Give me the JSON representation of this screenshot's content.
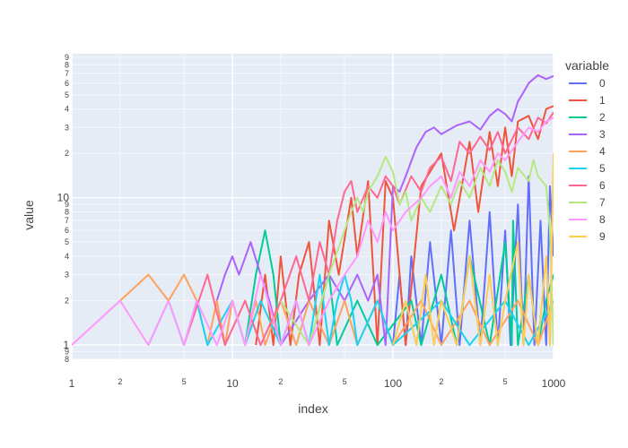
{
  "chart_data": {
    "type": "line",
    "xlabel": "index",
    "ylabel": "value",
    "x_scale": "log",
    "y_scale": "log",
    "xlim": [
      1,
      1000
    ],
    "ylim": [
      0.8,
      95
    ],
    "grid": true,
    "legend": {
      "title": "variable",
      "placement": "right"
    },
    "x_major_ticks": [
      {
        "v": 1,
        "label": "1"
      },
      {
        "v": 10,
        "label": "10"
      },
      {
        "v": 100,
        "label": "100"
      },
      {
        "v": 1000,
        "label": "1000"
      }
    ],
    "x_minor_ticks": [
      {
        "v": 2,
        "label": "2"
      },
      {
        "v": 5,
        "label": "5"
      },
      {
        "v": 20,
        "label": "2"
      },
      {
        "v": 50,
        "label": "5"
      },
      {
        "v": 200,
        "label": "2"
      },
      {
        "v": 500,
        "label": "5"
      }
    ],
    "y_major_ticks": [
      {
        "v": 1,
        "label": "1"
      },
      {
        "v": 10,
        "label": "10"
      }
    ],
    "y_minor_ticks": [
      {
        "v": 0.8,
        "label": "8"
      },
      {
        "v": 0.9,
        "label": "9"
      },
      {
        "v": 2,
        "label": "2"
      },
      {
        "v": 3,
        "label": "3"
      },
      {
        "v": 4,
        "label": "4"
      },
      {
        "v": 5,
        "label": "5"
      },
      {
        "v": 6,
        "label": "6"
      },
      {
        "v": 7,
        "label": "7"
      },
      {
        "v": 8,
        "label": "8"
      },
      {
        "v": 9,
        "label": "9"
      },
      {
        "v": 20,
        "label": "2"
      },
      {
        "v": 30,
        "label": "3"
      },
      {
        "v": 40,
        "label": "4"
      },
      {
        "v": 50,
        "label": "5"
      },
      {
        "v": 60,
        "label": "6"
      },
      {
        "v": 70,
        "label": "7"
      },
      {
        "v": 80,
        "label": "8"
      },
      {
        "v": 90,
        "label": "9"
      }
    ],
    "series": [
      {
        "name": "0",
        "color": "#636efa",
        "points": [
          [
            100,
            1
          ],
          [
            110,
            3
          ],
          [
            120,
            1
          ],
          [
            130,
            4
          ],
          [
            150,
            1
          ],
          [
            170,
            5
          ],
          [
            200,
            1
          ],
          [
            230,
            6
          ],
          [
            260,
            1
          ],
          [
            300,
            7
          ],
          [
            350,
            1
          ],
          [
            400,
            8
          ],
          [
            450,
            1
          ],
          [
            500,
            6
          ],
          [
            540,
            1
          ],
          [
            600,
            9
          ],
          [
            650,
            1
          ],
          [
            700,
            14
          ],
          [
            760,
            1
          ],
          [
            830,
            7
          ],
          [
            900,
            1
          ],
          [
            950,
            12
          ],
          [
            1000,
            4
          ]
        ]
      },
      {
        "name": "1",
        "color": "#ef553b",
        "points": [
          [
            14,
            1
          ],
          [
            16,
            3
          ],
          [
            18,
            1
          ],
          [
            20,
            4
          ],
          [
            23,
            1
          ],
          [
            26,
            3
          ],
          [
            30,
            5
          ],
          [
            35,
            1
          ],
          [
            40,
            7
          ],
          [
            46,
            3
          ],
          [
            55,
            10
          ],
          [
            60,
            4
          ],
          [
            70,
            13
          ],
          [
            80,
            1
          ],
          [
            90,
            13
          ],
          [
            100,
            10
          ],
          [
            120,
            1
          ],
          [
            150,
            12
          ],
          [
            200,
            20
          ],
          [
            240,
            6
          ],
          [
            300,
            24
          ],
          [
            340,
            8
          ],
          [
            400,
            28
          ],
          [
            450,
            12
          ],
          [
            500,
            30
          ],
          [
            550,
            14
          ],
          [
            600,
            33
          ],
          [
            700,
            36
          ],
          [
            800,
            25
          ],
          [
            900,
            40
          ],
          [
            1000,
            42
          ]
        ]
      },
      {
        "name": "2",
        "color": "#00cc96",
        "points": [
          [
            12,
            1
          ],
          [
            14,
            3
          ],
          [
            16,
            6
          ],
          [
            18,
            3
          ],
          [
            20,
            1
          ],
          [
            25,
            2
          ],
          [
            30,
            1
          ],
          [
            40,
            3
          ],
          [
            45,
            1
          ],
          [
            60,
            2
          ],
          [
            80,
            1
          ],
          [
            130,
            2
          ],
          [
            150,
            1
          ],
          [
            200,
            3
          ],
          [
            250,
            1
          ],
          [
            300,
            4
          ],
          [
            400,
            1
          ],
          [
            500,
            5
          ],
          [
            550,
            1
          ],
          [
            560,
            7
          ],
          [
            600,
            1
          ],
          [
            700,
            3
          ],
          [
            800,
            1
          ],
          [
            900,
            2
          ],
          [
            1000,
            3
          ]
        ]
      },
      {
        "name": "3",
        "color": "#ab63fa",
        "points": [
          [
            8,
            2
          ],
          [
            9,
            3
          ],
          [
            10,
            4
          ],
          [
            11,
            3
          ],
          [
            13,
            5
          ],
          [
            15,
            3
          ],
          [
            17,
            2
          ],
          [
            20,
            1
          ],
          [
            30,
            2
          ],
          [
            40,
            3
          ],
          [
            50,
            2
          ],
          [
            60,
            3
          ],
          [
            70,
            2
          ],
          [
            80,
            3
          ],
          [
            90,
            1
          ],
          [
            100,
            12
          ],
          [
            110,
            11
          ],
          [
            120,
            14
          ],
          [
            140,
            22
          ],
          [
            160,
            28
          ],
          [
            180,
            30
          ],
          [
            200,
            27
          ],
          [
            250,
            31
          ],
          [
            300,
            33
          ],
          [
            350,
            29
          ],
          [
            400,
            36
          ],
          [
            450,
            40
          ],
          [
            500,
            37
          ],
          [
            550,
            33
          ],
          [
            600,
            45
          ],
          [
            650,
            52
          ],
          [
            700,
            60
          ],
          [
            800,
            68
          ],
          [
            900,
            64
          ],
          [
            1000,
            67
          ]
        ]
      },
      {
        "name": "4",
        "color": "#ffa15a",
        "points": [
          [
            2,
            2
          ],
          [
            3,
            3
          ],
          [
            4,
            2
          ],
          [
            5,
            3
          ],
          [
            6,
            2
          ],
          [
            7,
            1
          ],
          [
            8,
            2
          ],
          [
            9,
            1
          ],
          [
            10,
            2
          ],
          [
            12,
            1
          ],
          [
            14,
            2
          ],
          [
            16,
            1
          ],
          [
            20,
            2
          ],
          [
            25,
            1
          ],
          [
            30,
            2
          ],
          [
            40,
            1
          ],
          [
            50,
            2
          ],
          [
            60,
            1
          ],
          [
            80,
            2
          ],
          [
            100,
            1
          ],
          [
            150,
            2
          ],
          [
            200,
            1
          ],
          [
            300,
            2
          ],
          [
            400,
            1
          ],
          [
            600,
            2
          ],
          [
            800,
            1
          ],
          [
            1000,
            2
          ]
        ]
      },
      {
        "name": "5",
        "color": "#19d3f3",
        "points": [
          [
            3,
            1
          ],
          [
            4,
            2
          ],
          [
            5,
            1
          ],
          [
            6,
            2
          ],
          [
            7,
            1
          ],
          [
            10,
            2
          ],
          [
            12,
            1
          ],
          [
            15,
            2
          ],
          [
            20,
            1
          ],
          [
            25,
            2
          ],
          [
            30,
            1
          ],
          [
            35,
            3
          ],
          [
            40,
            1
          ],
          [
            45,
            2
          ],
          [
            50,
            3
          ],
          [
            55,
            2
          ],
          [
            60,
            1
          ],
          [
            80,
            2
          ],
          [
            100,
            1
          ],
          [
            200,
            2
          ],
          [
            300,
            1
          ],
          [
            500,
            2
          ],
          [
            700,
            1
          ],
          [
            1000,
            2
          ]
        ]
      },
      {
        "name": "6",
        "color": "#ff6692",
        "points": [
          [
            5,
            1
          ],
          [
            7,
            3
          ],
          [
            9,
            1
          ],
          [
            12,
            2
          ],
          [
            15,
            1
          ],
          [
            20,
            2
          ],
          [
            25,
            4
          ],
          [
            30,
            2
          ],
          [
            35,
            5
          ],
          [
            40,
            3
          ],
          [
            45,
            7
          ],
          [
            50,
            11
          ],
          [
            55,
            13
          ],
          [
            60,
            8
          ],
          [
            70,
            12
          ],
          [
            80,
            10
          ],
          [
            90,
            14
          ],
          [
            100,
            12
          ],
          [
            110,
            9
          ],
          [
            130,
            14
          ],
          [
            150,
            11
          ],
          [
            170,
            16
          ],
          [
            200,
            19
          ],
          [
            230,
            13
          ],
          [
            260,
            24
          ],
          [
            300,
            20
          ],
          [
            350,
            26
          ],
          [
            400,
            21
          ],
          [
            450,
            28
          ],
          [
            500,
            20
          ],
          [
            600,
            30
          ],
          [
            700,
            25
          ],
          [
            800,
            35
          ],
          [
            900,
            32
          ],
          [
            1000,
            38
          ]
        ]
      },
      {
        "name": "7",
        "color": "#b6e880",
        "points": [
          [
            20,
            2
          ],
          [
            30,
            1
          ],
          [
            40,
            3
          ],
          [
            50,
            6
          ],
          [
            55,
            8
          ],
          [
            60,
            10
          ],
          [
            65,
            8
          ],
          [
            70,
            11
          ],
          [
            80,
            14
          ],
          [
            90,
            19
          ],
          [
            100,
            15
          ],
          [
            110,
            9
          ],
          [
            120,
            11
          ],
          [
            130,
            7
          ],
          [
            150,
            10
          ],
          [
            170,
            8
          ],
          [
            200,
            12
          ],
          [
            230,
            9
          ],
          [
            260,
            13
          ],
          [
            300,
            10
          ],
          [
            350,
            16
          ],
          [
            400,
            12
          ],
          [
            450,
            18
          ],
          [
            500,
            15
          ],
          [
            550,
            11
          ],
          [
            600,
            16
          ],
          [
            700,
            13
          ],
          [
            750,
            18
          ],
          [
            800,
            14
          ],
          [
            900,
            12
          ],
          [
            950,
            6
          ],
          [
            1000,
            1
          ]
        ]
      },
      {
        "name": "8",
        "color": "#ff97ff",
        "points": [
          [
            1,
            1
          ],
          [
            2,
            2
          ],
          [
            3,
            1
          ],
          [
            4,
            2
          ],
          [
            5,
            1
          ],
          [
            6,
            2
          ],
          [
            8,
            1
          ],
          [
            10,
            2
          ],
          [
            12,
            1
          ],
          [
            15,
            3
          ],
          [
            20,
            1
          ],
          [
            25,
            2
          ],
          [
            30,
            1
          ],
          [
            40,
            2
          ],
          [
            50,
            3
          ],
          [
            60,
            4
          ],
          [
            70,
            7
          ],
          [
            80,
            5
          ],
          [
            90,
            8
          ],
          [
            100,
            6
          ],
          [
            120,
            8
          ],
          [
            150,
            10
          ],
          [
            170,
            12
          ],
          [
            200,
            14
          ],
          [
            230,
            10
          ],
          [
            260,
            15
          ],
          [
            300,
            12
          ],
          [
            350,
            18
          ],
          [
            400,
            15
          ],
          [
            450,
            20
          ],
          [
            500,
            18
          ],
          [
            600,
            24
          ],
          [
            700,
            30
          ],
          [
            800,
            28
          ],
          [
            900,
            33
          ],
          [
            1000,
            35
          ]
        ]
      },
      {
        "name": "9",
        "color": "#fecb52",
        "points": [
          [
            100,
            1
          ],
          [
            120,
            2
          ],
          [
            140,
            1
          ],
          [
            160,
            3
          ],
          [
            180,
            1
          ],
          [
            200,
            2
          ],
          [
            250,
            1
          ],
          [
            300,
            4
          ],
          [
            350,
            1
          ],
          [
            400,
            3
          ],
          [
            450,
            1
          ],
          [
            500,
            2
          ],
          [
            600,
            5
          ],
          [
            650,
            1
          ],
          [
            700,
            3
          ],
          [
            800,
            1
          ],
          [
            900,
            4
          ],
          [
            950,
            1
          ],
          [
            1000,
            20
          ]
        ]
      }
    ]
  }
}
